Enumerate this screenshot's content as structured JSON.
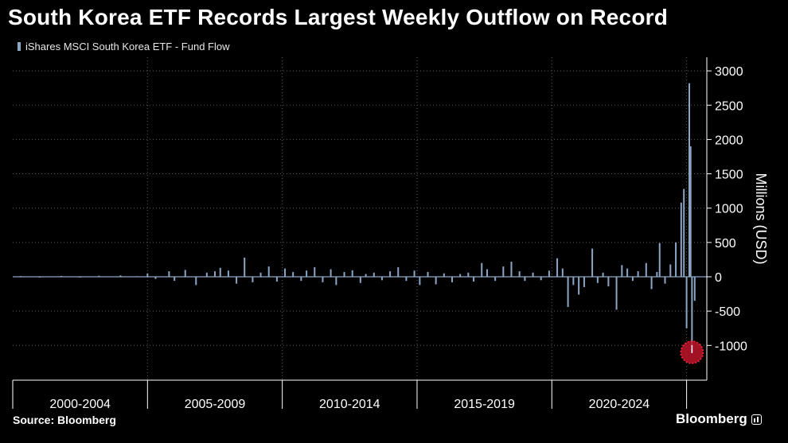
{
  "header": {
    "title": "South Korea ETF Records Largest Weekly Outflow on Record",
    "legend_label": "iShares MSCI South Korea ETF - Fund Flow"
  },
  "footer": {
    "source": "Source: Bloomberg",
    "brand": "Bloomberg"
  },
  "colors": {
    "background": "#000000",
    "bar": "#8ca6c6",
    "grid": "#5a5a5a",
    "highlight": "#c0142a"
  },
  "chart_data": {
    "type": "bar",
    "ylabel": "Millions (USD)",
    "ylim": [
      -1500,
      3000
    ],
    "yticks": [
      3000,
      2500,
      2000,
      1500,
      1000,
      500,
      0,
      -500,
      -1000
    ],
    "x_category_labels": [
      "2000-2004",
      "2005-2009",
      "2010-2014",
      "2015-2019",
      "2020-2024"
    ],
    "grid": true,
    "legend_position": "top-left",
    "highlight": {
      "x": 2025.2,
      "value": -1100,
      "marker": "red-circle"
    },
    "series": [
      {
        "name": "iShares MSCI South Korea ETF - Fund Flow",
        "points": [
          [
            2000.3,
            10
          ],
          [
            2001.0,
            -8
          ],
          [
            2001.8,
            12
          ],
          [
            2002.5,
            -6
          ],
          [
            2003.2,
            15
          ],
          [
            2004.0,
            20
          ],
          [
            2004.6,
            8
          ],
          [
            2005.0,
            50
          ],
          [
            2005.3,
            -30
          ],
          [
            2005.8,
            80
          ],
          [
            2006.0,
            -60
          ],
          [
            2006.4,
            100
          ],
          [
            2006.8,
            -120
          ],
          [
            2007.2,
            60
          ],
          [
            2007.5,
            80
          ],
          [
            2007.7,
            130
          ],
          [
            2008.0,
            90
          ],
          [
            2008.3,
            -100
          ],
          [
            2008.6,
            280
          ],
          [
            2008.9,
            -80
          ],
          [
            2009.2,
            60
          ],
          [
            2009.5,
            150
          ],
          [
            2009.8,
            -70
          ],
          [
            2010.1,
            120
          ],
          [
            2010.4,
            70
          ],
          [
            2010.7,
            -60
          ],
          [
            2010.9,
            90
          ],
          [
            2011.2,
            140
          ],
          [
            2011.5,
            -80
          ],
          [
            2011.8,
            110
          ],
          [
            2012.0,
            -120
          ],
          [
            2012.3,
            70
          ],
          [
            2012.6,
            95
          ],
          [
            2012.9,
            -90
          ],
          [
            2013.1,
            40
          ],
          [
            2013.4,
            60
          ],
          [
            2013.7,
            -50
          ],
          [
            2014.0,
            80
          ],
          [
            2014.3,
            140
          ],
          [
            2014.6,
            -60
          ],
          [
            2014.9,
            90
          ],
          [
            2015.1,
            -120
          ],
          [
            2015.4,
            70
          ],
          [
            2015.7,
            -110
          ],
          [
            2016.0,
            50
          ],
          [
            2016.3,
            -80
          ],
          [
            2016.6,
            40
          ],
          [
            2016.9,
            60
          ],
          [
            2017.1,
            -70
          ],
          [
            2017.4,
            200
          ],
          [
            2017.6,
            110
          ],
          [
            2017.9,
            -60
          ],
          [
            2018.2,
            150
          ],
          [
            2018.5,
            220
          ],
          [
            2018.8,
            80
          ],
          [
            2019.0,
            -60
          ],
          [
            2019.3,
            60
          ],
          [
            2019.6,
            -50
          ],
          [
            2019.9,
            90
          ],
          [
            2020.2,
            270
          ],
          [
            2020.4,
            120
          ],
          [
            2020.6,
            -440
          ],
          [
            2020.8,
            -120
          ],
          [
            2021.0,
            -260
          ],
          [
            2021.2,
            -150
          ],
          [
            2021.5,
            410
          ],
          [
            2021.7,
            -90
          ],
          [
            2021.9,
            60
          ],
          [
            2022.1,
            -140
          ],
          [
            2022.4,
            -480
          ],
          [
            2022.6,
            170
          ],
          [
            2022.8,
            120
          ],
          [
            2023.0,
            -60
          ],
          [
            2023.2,
            80
          ],
          [
            2023.5,
            200
          ],
          [
            2023.7,
            -180
          ],
          [
            2023.9,
            70
          ],
          [
            2024.0,
            490
          ],
          [
            2024.2,
            -100
          ],
          [
            2024.4,
            180
          ],
          [
            2024.6,
            500
          ],
          [
            2024.8,
            1080
          ],
          [
            2024.9,
            1280
          ],
          [
            2025.0,
            -750
          ],
          [
            2025.1,
            2820
          ],
          [
            2025.15,
            1900
          ],
          [
            2025.2,
            -1100
          ],
          [
            2025.3,
            -350
          ]
        ]
      }
    ]
  }
}
